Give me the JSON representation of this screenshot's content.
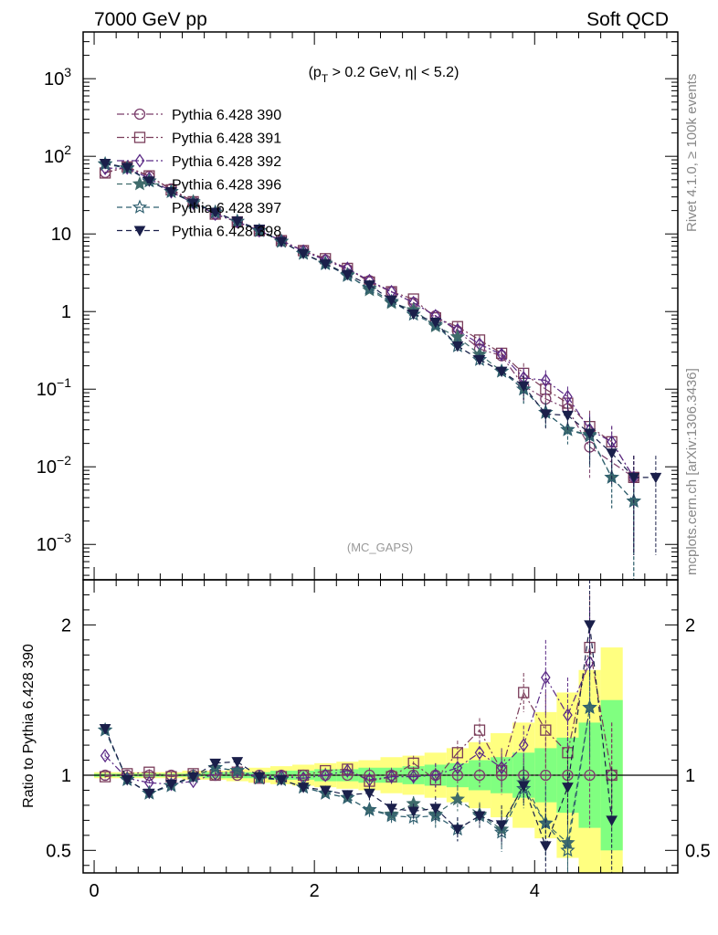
{
  "header": {
    "left": "7000 GeV pp",
    "right": "Soft QCD"
  },
  "side_text": {
    "rivet": "Rivet 4.1.0, ≥ 100k events",
    "mcplots": "mcplots.cern.ch [arXiv:1306.3436]"
  },
  "annotation": {
    "cut_pre": "(p",
    "cut_sub": "T",
    "cut_post": " > 0.2 GeV, η| < 5.2)",
    "watermark": "(MC_GAPS)"
  },
  "colors": {
    "s390": "#7a3d6b",
    "s391": "#7a3d5a",
    "s392": "#5b2a86",
    "s396": "#3f6b6b",
    "s397": "#2f5f6f",
    "s398": "#1a1f4a",
    "band_yellow": "#ffff80",
    "band_green": "#80ff80"
  },
  "chart_data": [
    {
      "panel": "main",
      "type": "line",
      "yscale": "log",
      "xlim": [
        -0.1,
        5.3
      ],
      "ylim": [
        0.00035,
        4000
      ],
      "x_ticks": [
        0,
        2,
        4
      ],
      "y_tick_labels": [
        "10^-3",
        "10^-2",
        "10^-1",
        "1",
        "10",
        "10^2",
        "10^3"
      ],
      "x": [
        0.1,
        0.3,
        0.5,
        0.7,
        0.9,
        1.1,
        1.3,
        1.5,
        1.7,
        1.9,
        2.1,
        2.3,
        2.5,
        2.7,
        2.9,
        3.1,
        3.3,
        3.5,
        3.7,
        3.9,
        4.1,
        4.3,
        4.5,
        4.7,
        4.9,
        5.1
      ],
      "series": [
        {
          "name": "Pythia 6.428 390",
          "key": "s390",
          "marker": "circle-open",
          "dash": "8,3,2,3",
          "values": [
            62,
            73,
            55,
            38,
            26,
            18,
            14.2,
            11,
            8.2,
            6.1,
            4.6,
            3.5,
            2.5,
            1.8,
            1.3,
            0.88,
            0.56,
            0.33,
            0.27,
            0.11,
            0.075,
            0.056,
            0.018,
            null,
            0.0073,
            null
          ]
        },
        {
          "name": "Pythia 6.428 391",
          "key": "s391",
          "marker": "square-open",
          "dash": "8,3,2,3",
          "values": [
            61,
            73,
            56,
            37,
            26,
            18,
            14.3,
            11,
            8.2,
            6.1,
            4.8,
            3.6,
            2.4,
            1.8,
            1.45,
            0.83,
            0.64,
            0.43,
            0.29,
            0.16,
            0.1,
            0.066,
            0.033,
            0.021,
            0.0073,
            null
          ]
        },
        {
          "name": "Pythia 6.428 392",
          "key": "s392",
          "marker": "diamond-open",
          "dash": "8,3,2,3",
          "values": [
            70,
            71,
            52,
            35,
            25,
            18,
            14.4,
            11,
            8.2,
            6.0,
            4.6,
            3.6,
            2.5,
            1.8,
            1.3,
            0.88,
            0.58,
            0.38,
            0.28,
            0.14,
            0.13,
            0.08,
            0.03,
            0.021,
            0.0073,
            null
          ]
        },
        {
          "name": "Pythia 6.428 396",
          "key": "s396",
          "marker": "star-filled",
          "dash": "6,4",
          "values": [
            79,
            71,
            48,
            35,
            26,
            19,
            14.5,
            11,
            8.0,
            5.6,
            4.2,
            3.0,
            1.9,
            1.3,
            1.05,
            0.65,
            0.47,
            0.28,
            0.17,
            0.1,
            0.05,
            0.03,
            0.026,
            0.0073,
            0.0036,
            null
          ]
        },
        {
          "name": "Pythia 6.428 397",
          "key": "s397",
          "marker": "star-open",
          "dash": "6,4",
          "values": [
            80,
            70,
            48,
            35,
            25,
            19,
            14.5,
            11,
            8.0,
            5.6,
            4.1,
            2.9,
            2.0,
            1.35,
            0.92,
            0.68,
            0.36,
            0.24,
            0.17,
            0.1,
            0.05,
            0.03,
            0.025,
            0.0073,
            0.0036,
            null
          ]
        },
        {
          "name": "Pythia 6.428 398",
          "key": "s398",
          "marker": "triangle-down-filled",
          "dash": "6,4",
          "values": [
            81,
            72,
            48,
            35,
            25,
            19,
            14.6,
            11.5,
            8.0,
            5.6,
            4.1,
            3.0,
            2.2,
            1.4,
            0.93,
            0.73,
            0.36,
            0.24,
            0.17,
            0.11,
            0.048,
            0.046,
            0.027,
            0.015,
            0.0073,
            0.0073
          ]
        }
      ]
    },
    {
      "panel": "ratio",
      "type": "line",
      "ylabel": "Ratio to Pythia 6.428 390",
      "xlim": [
        -0.1,
        5.3
      ],
      "ylim": [
        0.35,
        2.3
      ],
      "x_ticks": [
        0,
        2,
        4
      ],
      "y_ticks": [
        0.5,
        1,
        2
      ],
      "x_tick_labels": [
        "0",
        "2",
        "4"
      ],
      "y_tick_labels": [
        "0.5",
        "1",
        "2"
      ],
      "x": [
        0.1,
        0.3,
        0.5,
        0.7,
        0.9,
        1.1,
        1.3,
        1.5,
        1.7,
        1.9,
        2.1,
        2.3,
        2.5,
        2.7,
        2.9,
        3.1,
        3.3,
        3.5,
        3.7,
        3.9,
        4.1,
        4.3,
        4.5,
        4.7
      ],
      "band_yellow_half": [
        0.02,
        0.02,
        0.02,
        0.02,
        0.03,
        0.03,
        0.04,
        0.05,
        0.06,
        0.07,
        0.08,
        0.09,
        0.1,
        0.12,
        0.13,
        0.15,
        0.18,
        0.22,
        0.28,
        0.35,
        0.42,
        0.55,
        0.7,
        0.85
      ],
      "band_green_half": [
        0.01,
        0.01,
        0.01,
        0.01,
        0.01,
        0.02,
        0.02,
        0.02,
        0.03,
        0.03,
        0.04,
        0.04,
        0.05,
        0.05,
        0.06,
        0.07,
        0.08,
        0.1,
        0.12,
        0.15,
        0.18,
        0.25,
        0.35,
        0.5
      ],
      "series": [
        {
          "key": "s390",
          "marker": "circle-open",
          "dash": "8,3,2,3",
          "values": [
            1,
            1,
            1,
            1,
            1,
            1,
            1,
            1,
            1,
            1,
            1,
            1,
            1,
            1,
            1,
            1,
            1,
            1,
            1,
            1,
            1,
            1,
            1,
            1
          ]
        },
        {
          "key": "s391",
          "marker": "square-open",
          "dash": "8,3,2,3",
          "values": [
            0.99,
            1.01,
            1.02,
            0.99,
            1.01,
            1.0,
            1.02,
            0.98,
            0.99,
            1.0,
            1.03,
            1.04,
            0.96,
            0.99,
            1.08,
            0.97,
            1.15,
            1.3,
            1.03,
            1.55,
            1.3,
            1.15,
            1.85,
            1.0
          ]
        },
        {
          "key": "s392",
          "marker": "diamond-open",
          "dash": "8,3,2,3",
          "values": [
            1.13,
            0.98,
            0.95,
            0.94,
            0.96,
            1.01,
            1.03,
            0.99,
            0.99,
            0.98,
            1.0,
            1.03,
            0.97,
            0.99,
            0.99,
            1.0,
            1.05,
            1.15,
            1.05,
            1.2,
            1.65,
            1.4,
            1.75,
            null
          ]
        },
        {
          "key": "s396",
          "marker": "star-filled",
          "dash": "6,4",
          "values": [
            1.3,
            0.97,
            0.88,
            0.93,
            0.99,
            1.05,
            1.03,
            0.98,
            0.97,
            0.92,
            0.88,
            0.85,
            0.77,
            0.74,
            0.81,
            0.74,
            0.84,
            0.74,
            0.64,
            0.95,
            0.68,
            0.55,
            1.45,
            null
          ]
        },
        {
          "key": "s397",
          "marker": "star-open",
          "dash": "6,4",
          "values": [
            1.3,
            0.97,
            0.88,
            0.93,
            0.99,
            1.05,
            1.03,
            0.98,
            0.97,
            0.92,
            0.88,
            0.85,
            0.77,
            0.73,
            0.72,
            0.73,
            0.64,
            0.73,
            0.62,
            0.91,
            0.68,
            0.5,
            1.45,
            null
          ]
        },
        {
          "key": "s398",
          "marker": "triangle-down-filled",
          "dash": "6,4",
          "values": [
            1.31,
            0.97,
            0.88,
            0.94,
            0.99,
            1.08,
            1.09,
            0.99,
            0.97,
            0.92,
            0.9,
            0.87,
            0.88,
            0.78,
            0.76,
            0.78,
            0.64,
            0.73,
            0.67,
            0.93,
            0.53,
            0.92,
            2.0,
            0.7
          ]
        }
      ]
    }
  ]
}
